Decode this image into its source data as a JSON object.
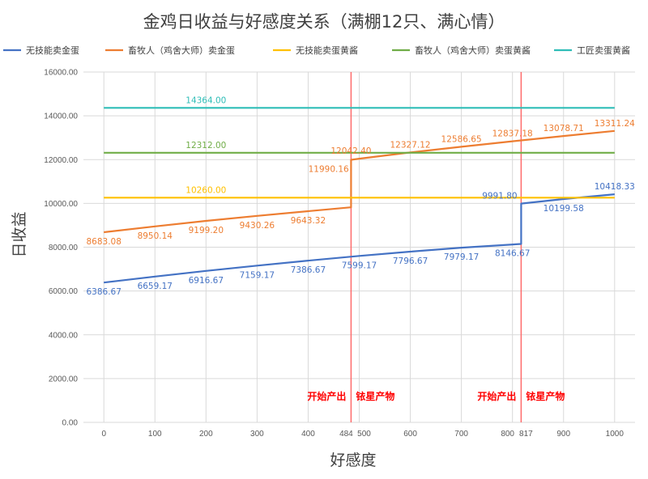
{
  "chart_data": {
    "type": "line",
    "title": "金鸡日收益与好感度关系（满棚12只、满心情）",
    "xlabel": "好感度",
    "ylabel": "日收益",
    "xlim": [
      -40,
      1040
    ],
    "ylim": [
      0,
      16000
    ],
    "x_ticks": [
      0,
      100,
      200,
      300,
      400,
      484,
      500,
      600,
      700,
      800,
      817,
      900,
      1000
    ],
    "y_ticks": [
      "0.00",
      "2000.00",
      "4000.00",
      "6000.00",
      "8000.00",
      "10000.00",
      "12000.00",
      "14000.00",
      "16000.00"
    ],
    "grid": true,
    "legend_position": "top",
    "series": [
      {
        "name": "无技能卖金蛋",
        "color": "#4472c4",
        "points": [
          [
            0,
            6386.67
          ],
          [
            100,
            6659.17
          ],
          [
            200,
            6916.67
          ],
          [
            300,
            7159.17
          ],
          [
            400,
            7386.67
          ],
          [
            500,
            7599.17
          ],
          [
            600,
            7796.67
          ],
          [
            700,
            7979.17
          ],
          [
            817,
            8146.67
          ],
          [
            817,
            9991.8
          ],
          [
            900,
            10199.58
          ],
          [
            1000,
            10418.33
          ]
        ],
        "labels": [
          {
            "x": 0,
            "y": 6386.67,
            "text": "6386.67",
            "pos": "below"
          },
          {
            "x": 100,
            "y": 6659.17,
            "text": "6659.17",
            "pos": "below"
          },
          {
            "x": 200,
            "y": 6916.67,
            "text": "6916.67",
            "pos": "below"
          },
          {
            "x": 300,
            "y": 7159.17,
            "text": "7159.17",
            "pos": "below"
          },
          {
            "x": 400,
            "y": 7386.67,
            "text": "7386.67",
            "pos": "below"
          },
          {
            "x": 500,
            "y": 7599.17,
            "text": "7599.17",
            "pos": "below"
          },
          {
            "x": 600,
            "y": 7796.67,
            "text": "7796.67",
            "pos": "below"
          },
          {
            "x": 700,
            "y": 7979.17,
            "text": "7979.17",
            "pos": "below"
          },
          {
            "x": 800,
            "y": 8146.67,
            "text": "8146.67",
            "pos": "below"
          },
          {
            "x": 775,
            "y": 9991.8,
            "text": "9991.80",
            "pos": "above"
          },
          {
            "x": 900,
            "y": 10199.58,
            "text": "10199.58",
            "pos": "below"
          },
          {
            "x": 1000,
            "y": 10418.33,
            "text": "10418.33",
            "pos": "above"
          }
        ]
      },
      {
        "name": "畜牧人（鸡舍大师）卖金蛋",
        "color": "#ed7d31",
        "points": [
          [
            0,
            8683.08
          ],
          [
            100,
            8950.14
          ],
          [
            200,
            9199.2
          ],
          [
            300,
            9430.26
          ],
          [
            400,
            9643.32
          ],
          [
            484,
            9820
          ],
          [
            484,
            11990.16
          ],
          [
            500,
            12042.4
          ],
          [
            600,
            12327.12
          ],
          [
            700,
            12586.65
          ],
          [
            800,
            12837.18
          ],
          [
            900,
            13078.71
          ],
          [
            1000,
            13311.24
          ]
        ],
        "labels": [
          {
            "x": 0,
            "y": 8683.08,
            "text": "8683.08",
            "pos": "below"
          },
          {
            "x": 100,
            "y": 8950.14,
            "text": "8950.14",
            "pos": "below"
          },
          {
            "x": 200,
            "y": 9199.2,
            "text": "9199.20",
            "pos": "below"
          },
          {
            "x": 300,
            "y": 9430.26,
            "text": "9430.26",
            "pos": "below"
          },
          {
            "x": 400,
            "y": 9643.32,
            "text": "9643.32",
            "pos": "below"
          },
          {
            "x": 440,
            "y": 11990.16,
            "text": "11990.16",
            "pos": "below"
          },
          {
            "x": 484,
            "y": 12042.4,
            "text": "12042.40",
            "pos": "above"
          },
          {
            "x": 600,
            "y": 12327.12,
            "text": "12327.12",
            "pos": "above"
          },
          {
            "x": 700,
            "y": 12586.65,
            "text": "12586.65",
            "pos": "above"
          },
          {
            "x": 800,
            "y": 12837.18,
            "text": "12837.18",
            "pos": "above"
          },
          {
            "x": 900,
            "y": 13078.71,
            "text": "13078.71",
            "pos": "above"
          },
          {
            "x": 1000,
            "y": 13311.24,
            "text": "13311.24",
            "pos": "above"
          }
        ]
      },
      {
        "name": "无技能卖蛋黄酱",
        "color": "#ffc000",
        "points": [
          [
            0,
            10260
          ],
          [
            1000,
            10260
          ]
        ],
        "labels": [
          {
            "x": 200,
            "y": 10260,
            "text": "10260.00",
            "pos": "above"
          }
        ]
      },
      {
        "name": "畜牧人（鸡舍大师）卖蛋黄酱",
        "color": "#70ad47",
        "points": [
          [
            0,
            12312
          ],
          [
            1000,
            12312
          ]
        ],
        "labels": [
          {
            "x": 200,
            "y": 12312,
            "text": "12312.00",
            "pos": "above"
          }
        ]
      },
      {
        "name": "工匠卖蛋黄酱",
        "color": "#2fbdb7",
        "points": [
          [
            0,
            14364
          ],
          [
            1000,
            14364
          ]
        ],
        "labels": [
          {
            "x": 200,
            "y": 14364,
            "text": "14364.00",
            "pos": "above"
          }
        ]
      }
    ],
    "reference_lines": [
      {
        "x": 484,
        "color": "#ff6b6b",
        "label": "开始产出 铱星产物"
      },
      {
        "x": 817,
        "color": "#ff6b6b",
        "label": "开始产出 铱星产物"
      }
    ]
  }
}
